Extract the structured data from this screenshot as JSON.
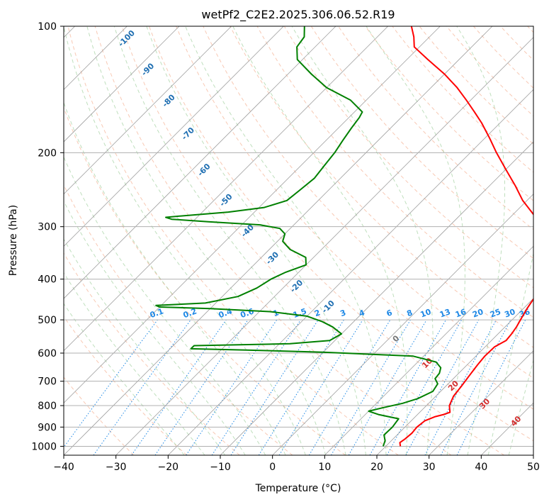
{
  "chart_data": {
    "type": "line",
    "title": "wetPf2_C2E2.2025.306.06.52.R19",
    "xlabel": "Temperature (°C)",
    "ylabel": "Pressure (hPa)",
    "xlim": [
      -40,
      50
    ],
    "ylim": [
      1050,
      100
    ],
    "yscale": "log",
    "x_ticks": [
      -40,
      -30,
      -20,
      -10,
      0,
      10,
      20,
      30,
      40,
      50
    ],
    "x_tick_labels": [
      "−40",
      "−30",
      "−20",
      "−10",
      "0",
      "10",
      "20",
      "30",
      "40",
      "50"
    ],
    "y_ticks": [
      1000,
      900,
      800,
      700,
      600,
      500,
      400,
      300,
      200,
      100
    ],
    "y_tick_labels": [
      "1000",
      "900",
      "800",
      "700",
      "600",
      "500",
      "400",
      "300",
      "200",
      "100"
    ],
    "skew": 45,
    "series": [
      {
        "name": "Temperature",
        "color": "#ff0000",
        "points": [
          [
            1000,
            22.8
          ],
          [
            980,
            22.0
          ],
          [
            960,
            22.3
          ],
          [
            930,
            22.5
          ],
          [
            900,
            22.3
          ],
          [
            870,
            22.6
          ],
          [
            850,
            23.8
          ],
          [
            840,
            25.0
          ],
          [
            830,
            25.8
          ],
          [
            800,
            24.4
          ],
          [
            760,
            23.4
          ],
          [
            720,
            23.0
          ],
          [
            680,
            22.5
          ],
          [
            640,
            22.0
          ],
          [
            610,
            21.7
          ],
          [
            580,
            21.8
          ],
          [
            560,
            22.8
          ],
          [
            540,
            22.6
          ],
          [
            520,
            22.2
          ],
          [
            500,
            21.6
          ],
          [
            470,
            20.7
          ],
          [
            430,
            19.7
          ],
          [
            400,
            18.2
          ],
          [
            370,
            16.0
          ],
          [
            340,
            12.8
          ],
          [
            315,
            9.8
          ],
          [
            300,
            7.9
          ],
          [
            280,
            3.8
          ],
          [
            260,
            -0.8
          ],
          [
            240,
            -5.0
          ],
          [
            220,
            -9.8
          ],
          [
            200,
            -15.0
          ],
          [
            185,
            -19.0
          ],
          [
            170,
            -23.5
          ],
          [
            160,
            -27.0
          ],
          [
            150,
            -30.8
          ],
          [
            140,
            -35.0
          ],
          [
            130,
            -40.0
          ],
          [
            120,
            -46.0
          ],
          [
            112,
            -51.0
          ],
          [
            106,
            -53.0
          ],
          [
            100,
            -55.5
          ]
        ]
      },
      {
        "name": "Dewpoint",
        "color": "#008000",
        "points": [
          [
            1000,
            19.5
          ],
          [
            970,
            18.8
          ],
          [
            940,
            17.5
          ],
          [
            900,
            17.6
          ],
          [
            860,
            17.2
          ],
          [
            840,
            12.5
          ],
          [
            825,
            10.0
          ],
          [
            810,
            12.0
          ],
          [
            790,
            15.0
          ],
          [
            770,
            17.0
          ],
          [
            740,
            18.5
          ],
          [
            710,
            18.0
          ],
          [
            690,
            16.5
          ],
          [
            670,
            16.3
          ],
          [
            650,
            15.5
          ],
          [
            630,
            13.5
          ],
          [
            610,
            8.0
          ],
          [
            597,
            -10.0
          ],
          [
            590,
            -25.0
          ],
          [
            586,
            -36.0
          ],
          [
            576,
            -36.0
          ],
          [
            570,
            -18.0
          ],
          [
            560,
            -11.0
          ],
          [
            540,
            -10.0
          ],
          [
            520,
            -13.0
          ],
          [
            505,
            -16.0
          ],
          [
            490,
            -20.0
          ],
          [
            478,
            -28.0
          ],
          [
            470,
            -40.0
          ],
          [
            466,
            -50.0
          ],
          [
            462,
            -51.0
          ],
          [
            456,
            -42.0
          ],
          [
            440,
            -37.0
          ],
          [
            420,
            -35.0
          ],
          [
            400,
            -34.0
          ],
          [
            385,
            -32.5
          ],
          [
            370,
            -30.0
          ],
          [
            355,
            -31.5
          ],
          [
            340,
            -36.0
          ],
          [
            325,
            -39.0
          ],
          [
            312,
            -40.0
          ],
          [
            303,
            -42.0
          ],
          [
            297,
            -46.5
          ],
          [
            292,
            -57.0
          ],
          [
            288,
            -64.5
          ],
          [
            285,
            -66.0
          ],
          [
            282,
            -62.0
          ],
          [
            277,
            -55.0
          ],
          [
            270,
            -49.0
          ],
          [
            260,
            -46.0
          ],
          [
            245,
            -45.5
          ],
          [
            230,
            -45.0
          ],
          [
            215,
            -45.5
          ],
          [
            200,
            -46.0
          ],
          [
            187,
            -46.8
          ],
          [
            175,
            -47.5
          ],
          [
            165,
            -48.0
          ],
          [
            160,
            -48.5
          ],
          [
            150,
            -53.0
          ],
          [
            140,
            -60.0
          ],
          [
            130,
            -65.5
          ],
          [
            120,
            -71.0
          ],
          [
            112,
            -73.5
          ],
          [
            106,
            -74.0
          ],
          [
            100,
            -76.0
          ]
        ]
      }
    ],
    "dry_adiabat_labels": [
      "-100",
      "-90",
      "-80",
      "-70",
      "-60",
      "-50",
      "-40",
      "-30",
      "-20",
      "-10"
    ],
    "mixing_ratio_labels": [
      "0.1",
      "0.2",
      "0.4",
      "0.6",
      "1",
      "1.5",
      "2",
      "3",
      "4",
      "6",
      "8",
      "10",
      "13",
      "16",
      "20",
      "25",
      "30",
      "36"
    ],
    "moist_adiabat_labels": [
      "0",
      "10",
      "20",
      "30",
      "40"
    ],
    "grid": true
  }
}
